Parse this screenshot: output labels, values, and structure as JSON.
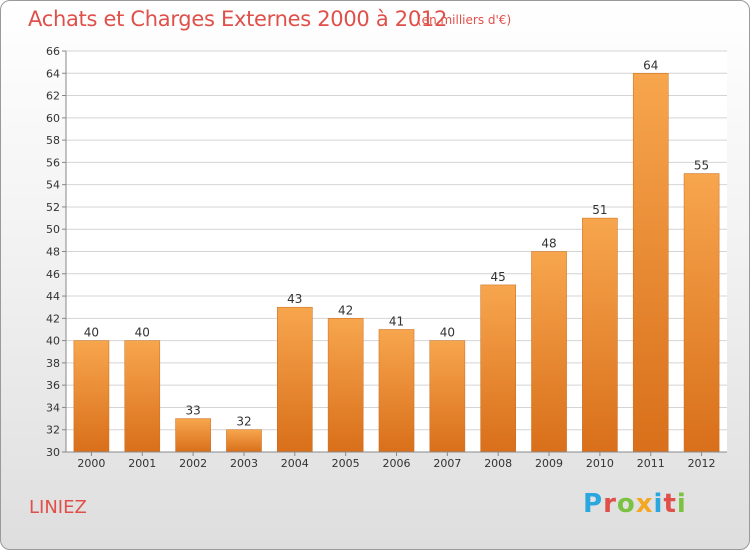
{
  "header": {
    "title": "Achats et Charges Externes 2000 à 2012",
    "subtitle": "(en milliers d'€)"
  },
  "commune": "LINIEZ",
  "logo": {
    "letters": [
      "P",
      "r",
      "o",
      "x",
      "i",
      "t",
      "i"
    ],
    "colors": [
      "#2aa7de",
      "#e0504a",
      "#7cc242",
      "#f5a623",
      "#2aa7de",
      "#e0504a",
      "#7cc242"
    ]
  },
  "chart_data": {
    "type": "bar",
    "title": "Achats et Charges Externes 2000 à 2012",
    "subtitle": "(en milliers d'€)",
    "categories": [
      "2000",
      "2001",
      "2002",
      "2003",
      "2004",
      "2005",
      "2006",
      "2007",
      "2008",
      "2009",
      "2010",
      "2011",
      "2012"
    ],
    "values": [
      40,
      40,
      33,
      32,
      43,
      42,
      41,
      40,
      45,
      48,
      51,
      64,
      55
    ],
    "ylim": [
      30,
      66
    ],
    "ytick_step": 2,
    "xlabel": "",
    "ylabel": "",
    "grid": true,
    "colors": {
      "bar_light": "#f7a64e",
      "bar_dark": "#d96f1a",
      "grid": "#d4d4d4"
    }
  }
}
